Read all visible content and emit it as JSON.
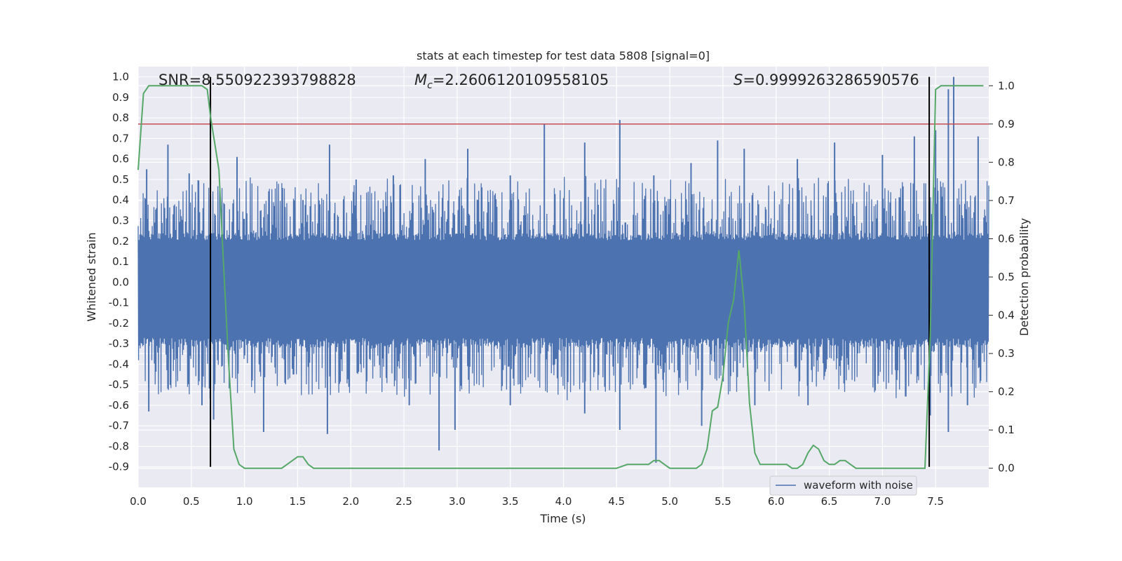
{
  "chart_data": {
    "type": "line",
    "title": "stats at each timestep for test data 5808 [signal=0]",
    "xlabel": "Time (s)",
    "ylabel": "Whitened strain",
    "y2label": "Detection probability",
    "xlim": [
      0.0,
      8.0
    ],
    "ylim": [
      -1.0,
      1.05
    ],
    "y2lim": [
      -0.05,
      1.05
    ],
    "x_ticks": [
      "0.0",
      "0.5",
      "1.0",
      "1.5",
      "2.0",
      "2.5",
      "3.0",
      "3.5",
      "4.0",
      "4.5",
      "5.0",
      "5.5",
      "6.0",
      "6.5",
      "7.0",
      "7.5"
    ],
    "y_ticks": [
      "-0.9",
      "-0.8",
      "-0.7",
      "-0.6",
      "-0.5",
      "-0.4",
      "-0.3",
      "-0.2",
      "-0.1",
      "0.0",
      "0.1",
      "0.2",
      "0.3",
      "0.4",
      "0.5",
      "0.6",
      "0.7",
      "0.8",
      "0.9",
      "1.0"
    ],
    "y2_ticks": [
      "0.0",
      "0.1",
      "0.2",
      "0.3",
      "0.4",
      "0.5",
      "0.6",
      "0.7",
      "0.8",
      "0.9",
      "1.0"
    ],
    "grid": true,
    "legend_position": "lower-right",
    "annotations": {
      "snr": "SNR=8.550922393798828",
      "mc_symbol": "M",
      "mc_sub": "c",
      "mc_value": "=2.2606120109558105",
      "s_symbol": "S",
      "s_value": "=0.9999263286590576"
    },
    "threshold": {
      "value": 0.9,
      "axis": "right",
      "color": "#c44e52"
    },
    "vlines": [
      {
        "x": 0.68,
        "ymin": -0.9,
        "ymax": 1.0
      },
      {
        "x": 7.44,
        "ymin": -0.9,
        "ymax": 1.0
      }
    ],
    "series": [
      {
        "name": "waveform with noise",
        "axis": "left",
        "color": "#4c72b0",
        "sample_rate_hz": 256,
        "band_min": -0.32,
        "band_max": 0.24,
        "spikes_pos": [
          [
            0.08,
            0.55
          ],
          [
            0.28,
            0.67
          ],
          [
            0.48,
            0.53
          ],
          [
            0.68,
            0.42
          ],
          [
            0.93,
            0.61
          ],
          [
            1.55,
            0.4
          ],
          [
            1.8,
            0.67
          ],
          [
            2.05,
            0.5
          ],
          [
            2.4,
            0.52
          ],
          [
            2.7,
            0.6
          ],
          [
            3.1,
            0.65
          ],
          [
            3.5,
            0.52
          ],
          [
            3.82,
            0.77
          ],
          [
            4.2,
            0.68
          ],
          [
            4.53,
            0.79
          ],
          [
            4.85,
            0.52
          ],
          [
            5.2,
            0.58
          ],
          [
            5.45,
            0.69
          ],
          [
            5.7,
            0.65
          ],
          [
            6.2,
            0.6
          ],
          [
            6.55,
            0.68
          ],
          [
            7.0,
            0.62
          ],
          [
            7.3,
            0.71
          ],
          [
            7.5,
            0.74
          ],
          [
            7.62,
            0.94
          ],
          [
            7.67,
            1.0
          ],
          [
            7.9,
            0.71
          ]
        ],
        "spikes_neg": [
          [
            0.1,
            -0.63
          ],
          [
            0.6,
            -0.6
          ],
          [
            0.71,
            -0.67
          ],
          [
            1.18,
            -0.73
          ],
          [
            1.78,
            -0.74
          ],
          [
            2.55,
            -0.6
          ],
          [
            2.83,
            -0.82
          ],
          [
            2.98,
            -0.72
          ],
          [
            3.5,
            -0.6
          ],
          [
            4.2,
            -0.64
          ],
          [
            4.53,
            -0.72
          ],
          [
            4.87,
            -0.88
          ],
          [
            5.3,
            -0.7
          ],
          [
            5.8,
            -0.6
          ],
          [
            6.3,
            -0.6
          ],
          [
            7.45,
            -0.65
          ],
          [
            7.62,
            -0.73
          ],
          [
            7.8,
            -0.6
          ]
        ]
      },
      {
        "name": "Detection probability",
        "axis": "right",
        "color": "#55a868",
        "x": [
          0.0,
          0.05,
          0.1,
          0.15,
          0.2,
          0.3,
          0.4,
          0.5,
          0.55,
          0.6,
          0.65,
          0.68,
          0.72,
          0.76,
          0.8,
          0.85,
          0.9,
          0.95,
          1.0,
          1.1,
          1.2,
          1.3,
          1.35,
          1.4,
          1.45,
          1.5,
          1.55,
          1.6,
          1.65,
          1.7,
          1.8,
          1.9,
          2.0,
          2.2,
          2.4,
          2.6,
          2.8,
          3.0,
          3.4,
          3.8,
          4.2,
          4.5,
          4.6,
          4.7,
          4.8,
          4.85,
          4.9,
          4.95,
          5.0,
          5.1,
          5.2,
          5.25,
          5.3,
          5.35,
          5.4,
          5.45,
          5.5,
          5.55,
          5.6,
          5.65,
          5.7,
          5.75,
          5.8,
          5.85,
          5.9,
          5.95,
          6.0,
          6.05,
          6.1,
          6.15,
          6.2,
          6.25,
          6.3,
          6.35,
          6.4,
          6.45,
          6.5,
          6.55,
          6.6,
          6.65,
          6.7,
          6.75,
          6.8,
          6.9,
          7.0,
          7.1,
          7.2,
          7.3,
          7.35,
          7.4,
          7.45,
          7.5,
          7.55,
          7.6,
          7.7,
          7.8,
          7.95
        ],
        "values": [
          0.78,
          0.98,
          1.0,
          1.0,
          1.0,
          1.0,
          1.0,
          1.0,
          1.0,
          1.0,
          0.99,
          0.92,
          0.85,
          0.78,
          0.55,
          0.28,
          0.05,
          0.01,
          0.0,
          0.0,
          0.0,
          0.0,
          0.0,
          0.01,
          0.02,
          0.03,
          0.03,
          0.01,
          0.0,
          0.0,
          0.0,
          0.0,
          0.0,
          0.0,
          0.0,
          0.0,
          0.0,
          0.0,
          0.0,
          0.0,
          0.0,
          0.0,
          0.01,
          0.01,
          0.01,
          0.02,
          0.02,
          0.01,
          0.0,
          0.0,
          0.0,
          0.0,
          0.01,
          0.05,
          0.15,
          0.16,
          0.24,
          0.38,
          0.44,
          0.57,
          0.43,
          0.17,
          0.04,
          0.01,
          0.01,
          0.01,
          0.01,
          0.01,
          0.01,
          0.0,
          0.0,
          0.01,
          0.04,
          0.06,
          0.05,
          0.02,
          0.01,
          0.01,
          0.02,
          0.02,
          0.01,
          0.0,
          0.0,
          0.0,
          0.0,
          0.0,
          0.0,
          0.0,
          0.0,
          0.0,
          0.35,
          0.99,
          1.0,
          1.0,
          1.0,
          1.0,
          1.0
        ]
      }
    ]
  }
}
